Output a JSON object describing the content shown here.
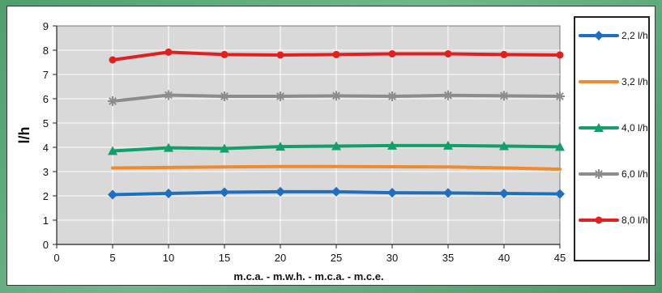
{
  "chart_data": {
    "type": "line",
    "ylabel": "l/h",
    "xlabel": "m.c.a. - m.w.h. - m.c.a. - m.c.e.",
    "xlim": [
      0,
      45
    ],
    "ylim": [
      0,
      9
    ],
    "xticks": [
      0,
      5,
      10,
      15,
      20,
      25,
      30,
      35,
      40,
      45
    ],
    "yticks": [
      0,
      1,
      2,
      3,
      4,
      5,
      6,
      7,
      8,
      9
    ],
    "x": [
      5,
      10,
      15,
      20,
      25,
      30,
      35,
      40,
      45
    ],
    "grid": true,
    "legend_position": "right",
    "series": [
      {
        "name": "2,2 l/h",
        "color": "#1f6fc1",
        "marker": "diamond",
        "values": [
          2.05,
          2.1,
          2.15,
          2.17,
          2.17,
          2.13,
          2.12,
          2.1,
          2.08
        ]
      },
      {
        "name": "3,2 l/h",
        "color": "#f08a2c",
        "marker": "none",
        "values": [
          3.15,
          3.17,
          3.19,
          3.21,
          3.21,
          3.2,
          3.19,
          3.15,
          3.1
        ]
      },
      {
        "name": "4,0 l/h",
        "color": "#12a06a",
        "marker": "triangle",
        "values": [
          3.85,
          3.98,
          3.95,
          4.03,
          4.05,
          4.07,
          4.07,
          4.05,
          4.02
        ]
      },
      {
        "name": "6,0 l/h",
        "color": "#8c8c8c",
        "marker": "star",
        "values": [
          5.9,
          6.15,
          6.1,
          6.1,
          6.12,
          6.1,
          6.14,
          6.12,
          6.1
        ]
      },
      {
        "name": "8,0 l/h",
        "color": "#e02020",
        "marker": "circle",
        "values": [
          7.6,
          7.92,
          7.82,
          7.8,
          7.82,
          7.85,
          7.85,
          7.82,
          7.8
        ]
      }
    ]
  }
}
